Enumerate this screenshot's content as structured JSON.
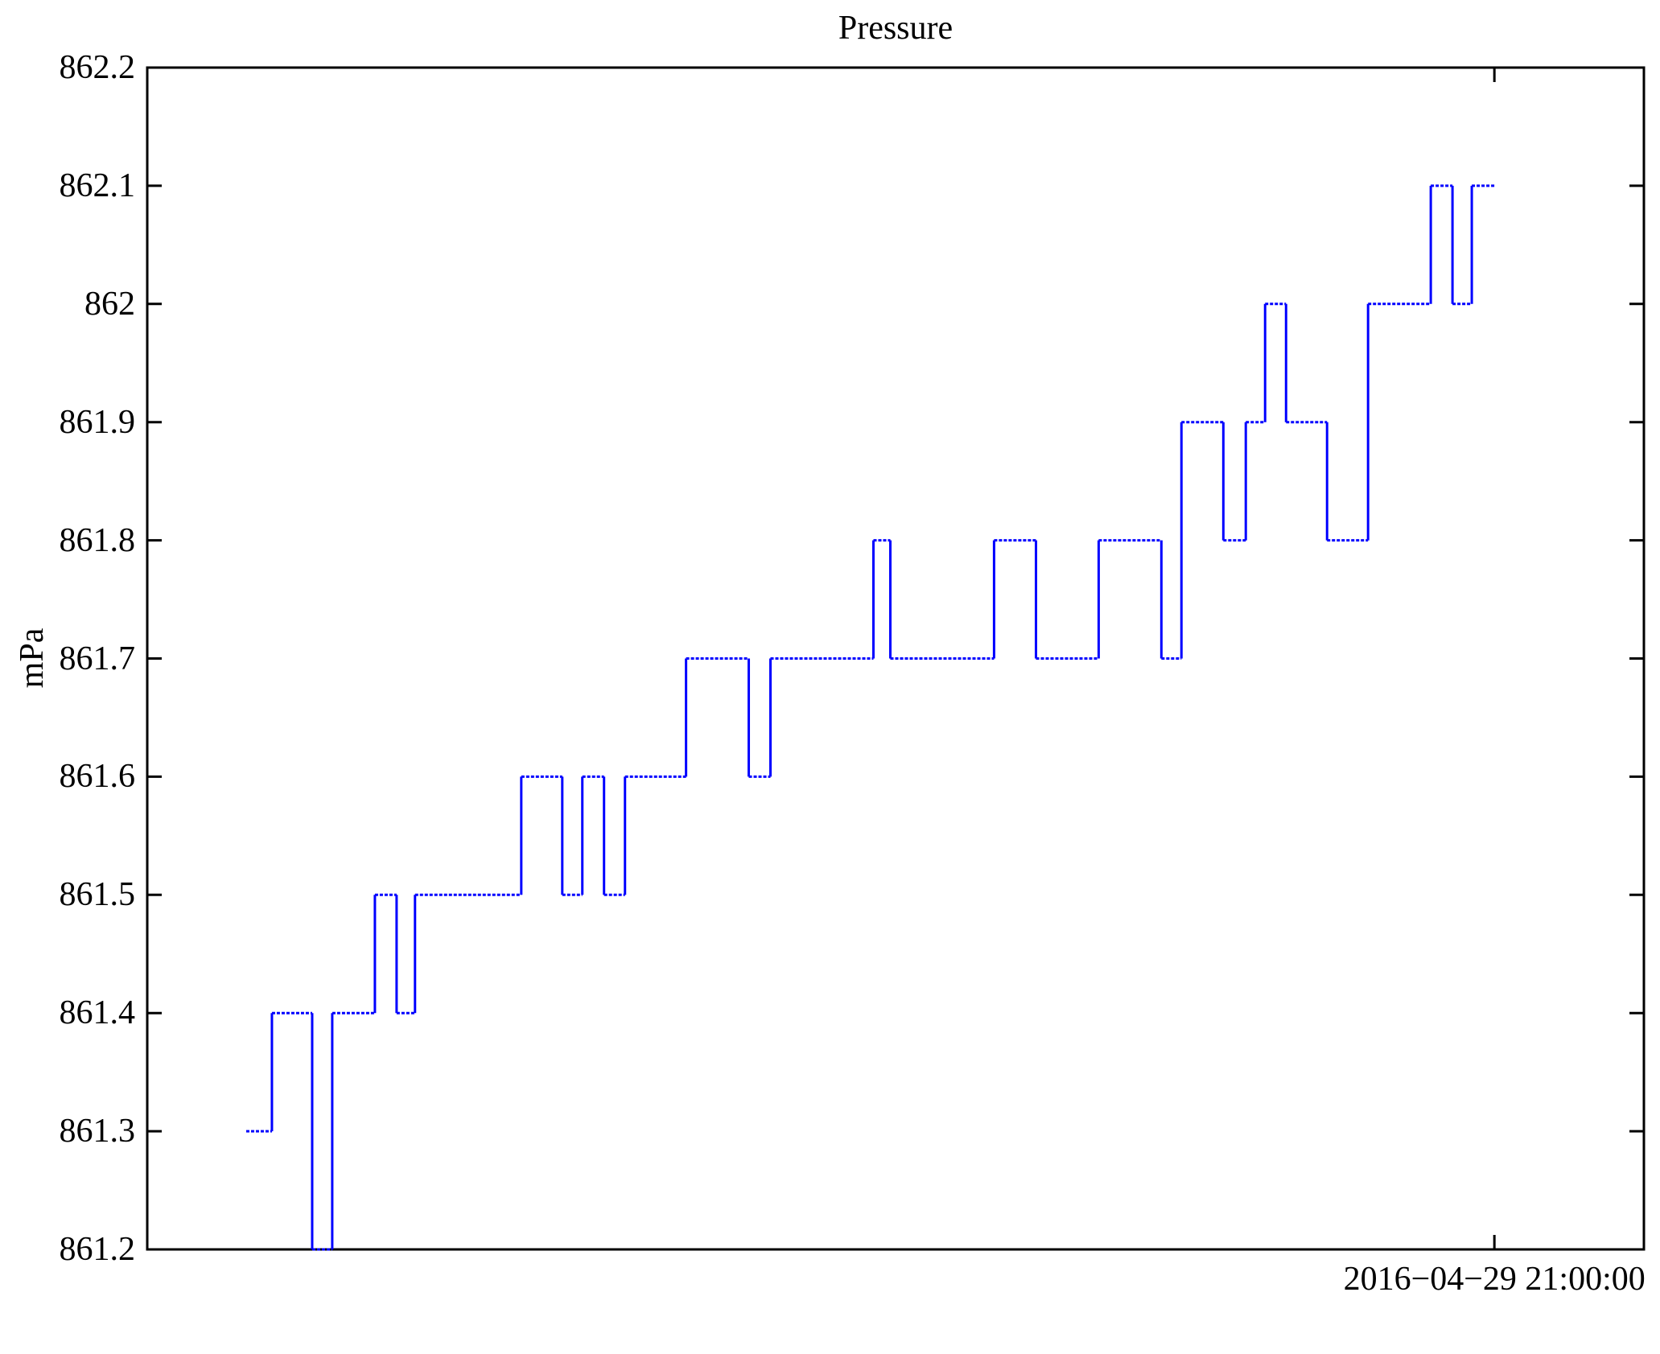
{
  "figure": {
    "background": "#ffffff",
    "frame_color": "#000000",
    "text_color": "#000000"
  },
  "chart_data": {
    "type": "line",
    "step": true,
    "title": "Pressure",
    "xlabel": "",
    "ylabel": "mPa",
    "ylim": [
      861.2,
      862.2
    ],
    "grid": false,
    "legend": false,
    "line_color": "#0000ff",
    "y_ticks": [
      {
        "value": 862.2,
        "label": "862.2"
      },
      {
        "value": 862.1,
        "label": "862.1"
      },
      {
        "value": 862.0,
        "label": "862"
      },
      {
        "value": 861.9,
        "label": "861.9"
      },
      {
        "value": 861.8,
        "label": "861.8"
      },
      {
        "value": 861.7,
        "label": "861.7"
      },
      {
        "value": 861.6,
        "label": "861.6"
      },
      {
        "value": 861.5,
        "label": "861.5"
      },
      {
        "value": 861.4,
        "label": "861.4"
      },
      {
        "value": 861.3,
        "label": "861.3"
      },
      {
        "value": 861.2,
        "label": "861.2"
      }
    ],
    "x_ticks": [
      {
        "frac": 0.9001,
        "label": "2016−04−29 21:00:00"
      }
    ],
    "series": [
      {
        "name": "Pressure",
        "steps": [
          [
            0.0661,
            861.3
          ],
          [
            0.0833,
            861.4
          ],
          [
            0.1102,
            861.2
          ],
          [
            0.1236,
            861.4
          ],
          [
            0.1521,
            861.5
          ],
          [
            0.1666,
            861.4
          ],
          [
            0.1789,
            861.5
          ],
          [
            0.2499,
            861.6
          ],
          [
            0.2773,
            861.5
          ],
          [
            0.2907,
            861.6
          ],
          [
            0.3052,
            861.5
          ],
          [
            0.3192,
            861.6
          ],
          [
            0.36,
            861.7
          ],
          [
            0.4019,
            861.6
          ],
          [
            0.4164,
            861.7
          ],
          [
            0.4852,
            861.8
          ],
          [
            0.4965,
            861.7
          ],
          [
            0.5658,
            861.8
          ],
          [
            0.5938,
            861.7
          ],
          [
            0.6357,
            861.8
          ],
          [
            0.6776,
            861.7
          ],
          [
            0.691,
            861.9
          ],
          [
            0.719,
            861.8
          ],
          [
            0.734,
            861.9
          ],
          [
            0.7469,
            862.0
          ],
          [
            0.7609,
            861.9
          ],
          [
            0.7883,
            861.8
          ],
          [
            0.8157,
            862.0
          ],
          [
            0.8576,
            862.1
          ],
          [
            0.8721,
            862.0
          ],
          [
            0.885,
            862.1
          ]
        ],
        "end_frac": 0.9001
      }
    ]
  }
}
